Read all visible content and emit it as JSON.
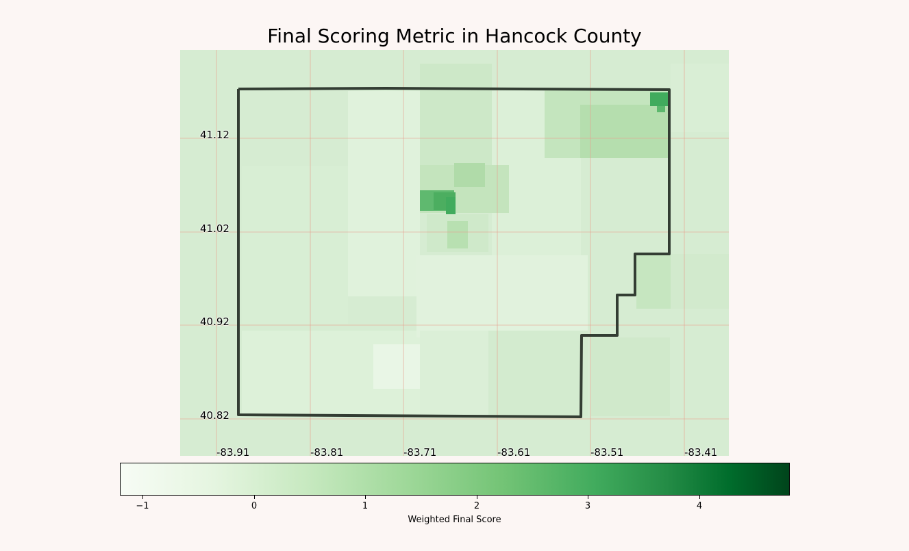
{
  "title": "Final Scoring Metric in Hancock County",
  "map": {
    "lat_ticks": [
      "41.12",
      "41.02",
      "40.92",
      "40.82"
    ],
    "lon_ticks": [
      "-83.91",
      "-83.81",
      "-83.71",
      "-83.61",
      "-83.51",
      "-83.41"
    ],
    "grid_color": "#e8a090",
    "boundary_color": "#333d33",
    "colormap": "Greens"
  },
  "colorbar": {
    "label": "Weighted Final Score",
    "ticks": [
      "−1",
      "0",
      "1",
      "2",
      "3",
      "4"
    ],
    "range": [
      -1.2,
      4.8
    ]
  },
  "colors": {
    "background": "#fcf6f4",
    "base_fill": "#d6ecd2",
    "light_fill": "#e3f3df",
    "mid_fill": "#b8e0b2",
    "dark_fill": "#41ab5d"
  }
}
